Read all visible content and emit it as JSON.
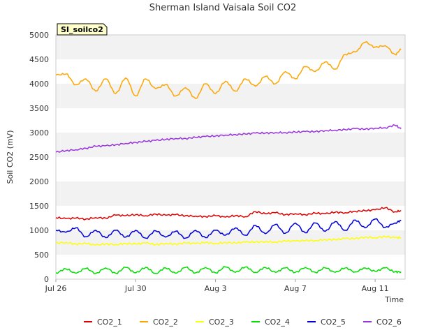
{
  "chart_data": {
    "type": "line",
    "title": "Sherman Island Vaisala Soil CO2",
    "xlabel": "Time",
    "ylabel": "Soil CO2 (mV)",
    "ylim": [
      0,
      5000
    ],
    "yticks": [
      0,
      500,
      1000,
      1500,
      2000,
      2500,
      3000,
      3500,
      4000,
      4500,
      5000
    ],
    "xlim": [
      0,
      17.5
    ],
    "xticks": [
      {
        "value": 0,
        "label": "Jul 26"
      },
      {
        "value": 4,
        "label": "Jul 30"
      },
      {
        "value": 8,
        "label": "Aug 3"
      },
      {
        "value": 12,
        "label": "Aug 7"
      },
      {
        "value": 16,
        "label": "Aug 11"
      }
    ],
    "badge": "SI_soilco2",
    "grid": "alternating horizontal bands",
    "legend_position": "bottom",
    "x": [
      0,
      0.5,
      1,
      1.5,
      2,
      2.5,
      3,
      3.5,
      4,
      4.5,
      5,
      5.5,
      6,
      6.5,
      7,
      7.5,
      8,
      8.5,
      9,
      9.5,
      10,
      10.5,
      11,
      11.5,
      12,
      12.5,
      13,
      13.5,
      14,
      14.5,
      15,
      15.5,
      16,
      16.5,
      17,
      17.3
    ],
    "series": [
      {
        "name": "CO2_1",
        "color": "#e00000",
        "values": [
          1260,
          1240,
          1250,
          1230,
          1260,
          1250,
          1310,
          1300,
          1320,
          1300,
          1330,
          1310,
          1320,
          1300,
          1290,
          1280,
          1300,
          1270,
          1300,
          1280,
          1380,
          1340,
          1360,
          1320,
          1340,
          1320,
          1350,
          1340,
          1370,
          1360,
          1390,
          1400,
          1420,
          1460,
          1380,
          1400
        ]
      },
      {
        "name": "CO2_2",
        "color": "#ffa500",
        "values": [
          4180,
          4200,
          3980,
          4100,
          3850,
          4100,
          3800,
          4120,
          3750,
          4100,
          3900,
          3980,
          3750,
          3920,
          3700,
          4000,
          3800,
          4050,
          3850,
          4100,
          3950,
          4150,
          4000,
          4250,
          4100,
          4350,
          4250,
          4450,
          4300,
          4600,
          4650,
          4850,
          4750,
          4780,
          4600,
          4700
        ]
      },
      {
        "name": "CO2_3",
        "color": "#ffff00",
        "values": [
          740,
          750,
          720,
          730,
          700,
          720,
          710,
          730,
          720,
          740,
          710,
          730,
          720,
          740,
          730,
          750,
          730,
          750,
          740,
          760,
          760,
          770,
          760,
          780,
          780,
          790,
          790,
          810,
          810,
          830,
          830,
          860,
          850,
          870,
          850,
          850
        ]
      },
      {
        "name": "CO2_4",
        "color": "#00e000",
        "values": [
          130,
          210,
          120,
          220,
          120,
          230,
          120,
          240,
          130,
          240,
          120,
          230,
          120,
          240,
          130,
          240,
          130,
          250,
          140,
          250,
          140,
          240,
          140,
          230,
          140,
          240,
          140,
          230,
          140,
          230,
          150,
          230,
          160,
          230,
          150,
          150
        ]
      },
      {
        "name": "CO2_5",
        "color": "#0000dd",
        "values": [
          1000,
          960,
          1050,
          870,
          1000,
          850,
          1000,
          860,
          1000,
          840,
          990,
          860,
          980,
          840,
          1000,
          850,
          1000,
          900,
          1050,
          900,
          1100,
          930,
          1120,
          940,
          1150,
          950,
          1150,
          980,
          1180,
          1000,
          1210,
          1050,
          1230,
          1060,
          1150,
          1200
        ]
      },
      {
        "name": "CO2_6",
        "color": "#9933dd",
        "values": [
          2600,
          2630,
          2650,
          2680,
          2720,
          2730,
          2750,
          2780,
          2800,
          2820,
          2840,
          2860,
          2880,
          2880,
          2900,
          2920,
          2930,
          2950,
          2960,
          2970,
          2990,
          2990,
          3000,
          3000,
          3010,
          3020,
          3020,
          3040,
          3050,
          3060,
          3080,
          3070,
          3090,
          3100,
          3150,
          3080
        ]
      }
    ]
  }
}
